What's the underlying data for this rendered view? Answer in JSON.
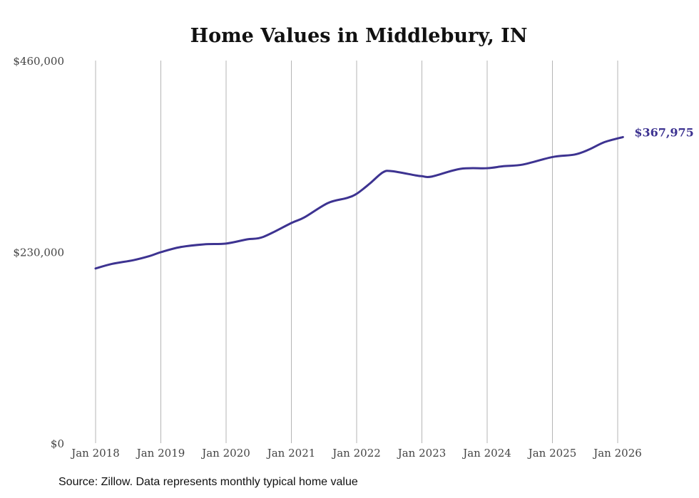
{
  "chart_data": {
    "type": "line",
    "title": "Home Values in Middlebury, IN",
    "xlabel": "",
    "ylabel": "",
    "ylim": [
      0,
      460000
    ],
    "xlim": [
      2018,
      2026
    ],
    "y_ticks": [
      {
        "value": 0,
        "label": "$0"
      },
      {
        "value": 230000,
        "label": "$230,000"
      },
      {
        "value": 460000,
        "label": "$460,000"
      }
    ],
    "x_ticks": [
      {
        "value": 2018,
        "label": "Jan 2018"
      },
      {
        "value": 2019,
        "label": "Jan 2019"
      },
      {
        "value": 2020,
        "label": "Jan 2020"
      },
      {
        "value": 2021,
        "label": "Jan 2021"
      },
      {
        "value": 2022,
        "label": "Jan 2022"
      },
      {
        "value": 2023,
        "label": "Jan 2023"
      },
      {
        "value": 2024,
        "label": "Jan 2024"
      },
      {
        "value": 2025,
        "label": "Jan 2025"
      },
      {
        "value": 2026,
        "label": "Jan 2026"
      }
    ],
    "grid": "vertical",
    "color": "#3d3391",
    "series": [
      {
        "name": "Typical home value",
        "x": [
          2018.0,
          2018.25,
          2018.58,
          2018.83,
          2019.0,
          2019.29,
          2019.66,
          2020.0,
          2020.32,
          2020.57,
          2021.0,
          2021.2,
          2021.56,
          2021.85,
          2022.0,
          2022.2,
          2022.4,
          2022.54,
          2022.9,
          2023.0,
          2023.15,
          2023.59,
          2024.0,
          2024.25,
          2024.55,
          2025.0,
          2025.34,
          2025.56,
          2025.8,
          2026.08
        ],
        "values": [
          210000,
          215500,
          220000,
          225000,
          229600,
          235600,
          239000,
          240000,
          245000,
          248000,
          264700,
          271500,
          288700,
          294700,
          299800,
          312000,
          325500,
          327000,
          322000,
          321000,
          320500,
          329800,
          330600,
          333000,
          335000,
          344000,
          347000,
          353000,
          362000,
          367975
        ]
      }
    ],
    "end_label": "$367,975"
  },
  "footer": {
    "source": "Source: Zillow. Data represents monthly typical home value"
  }
}
